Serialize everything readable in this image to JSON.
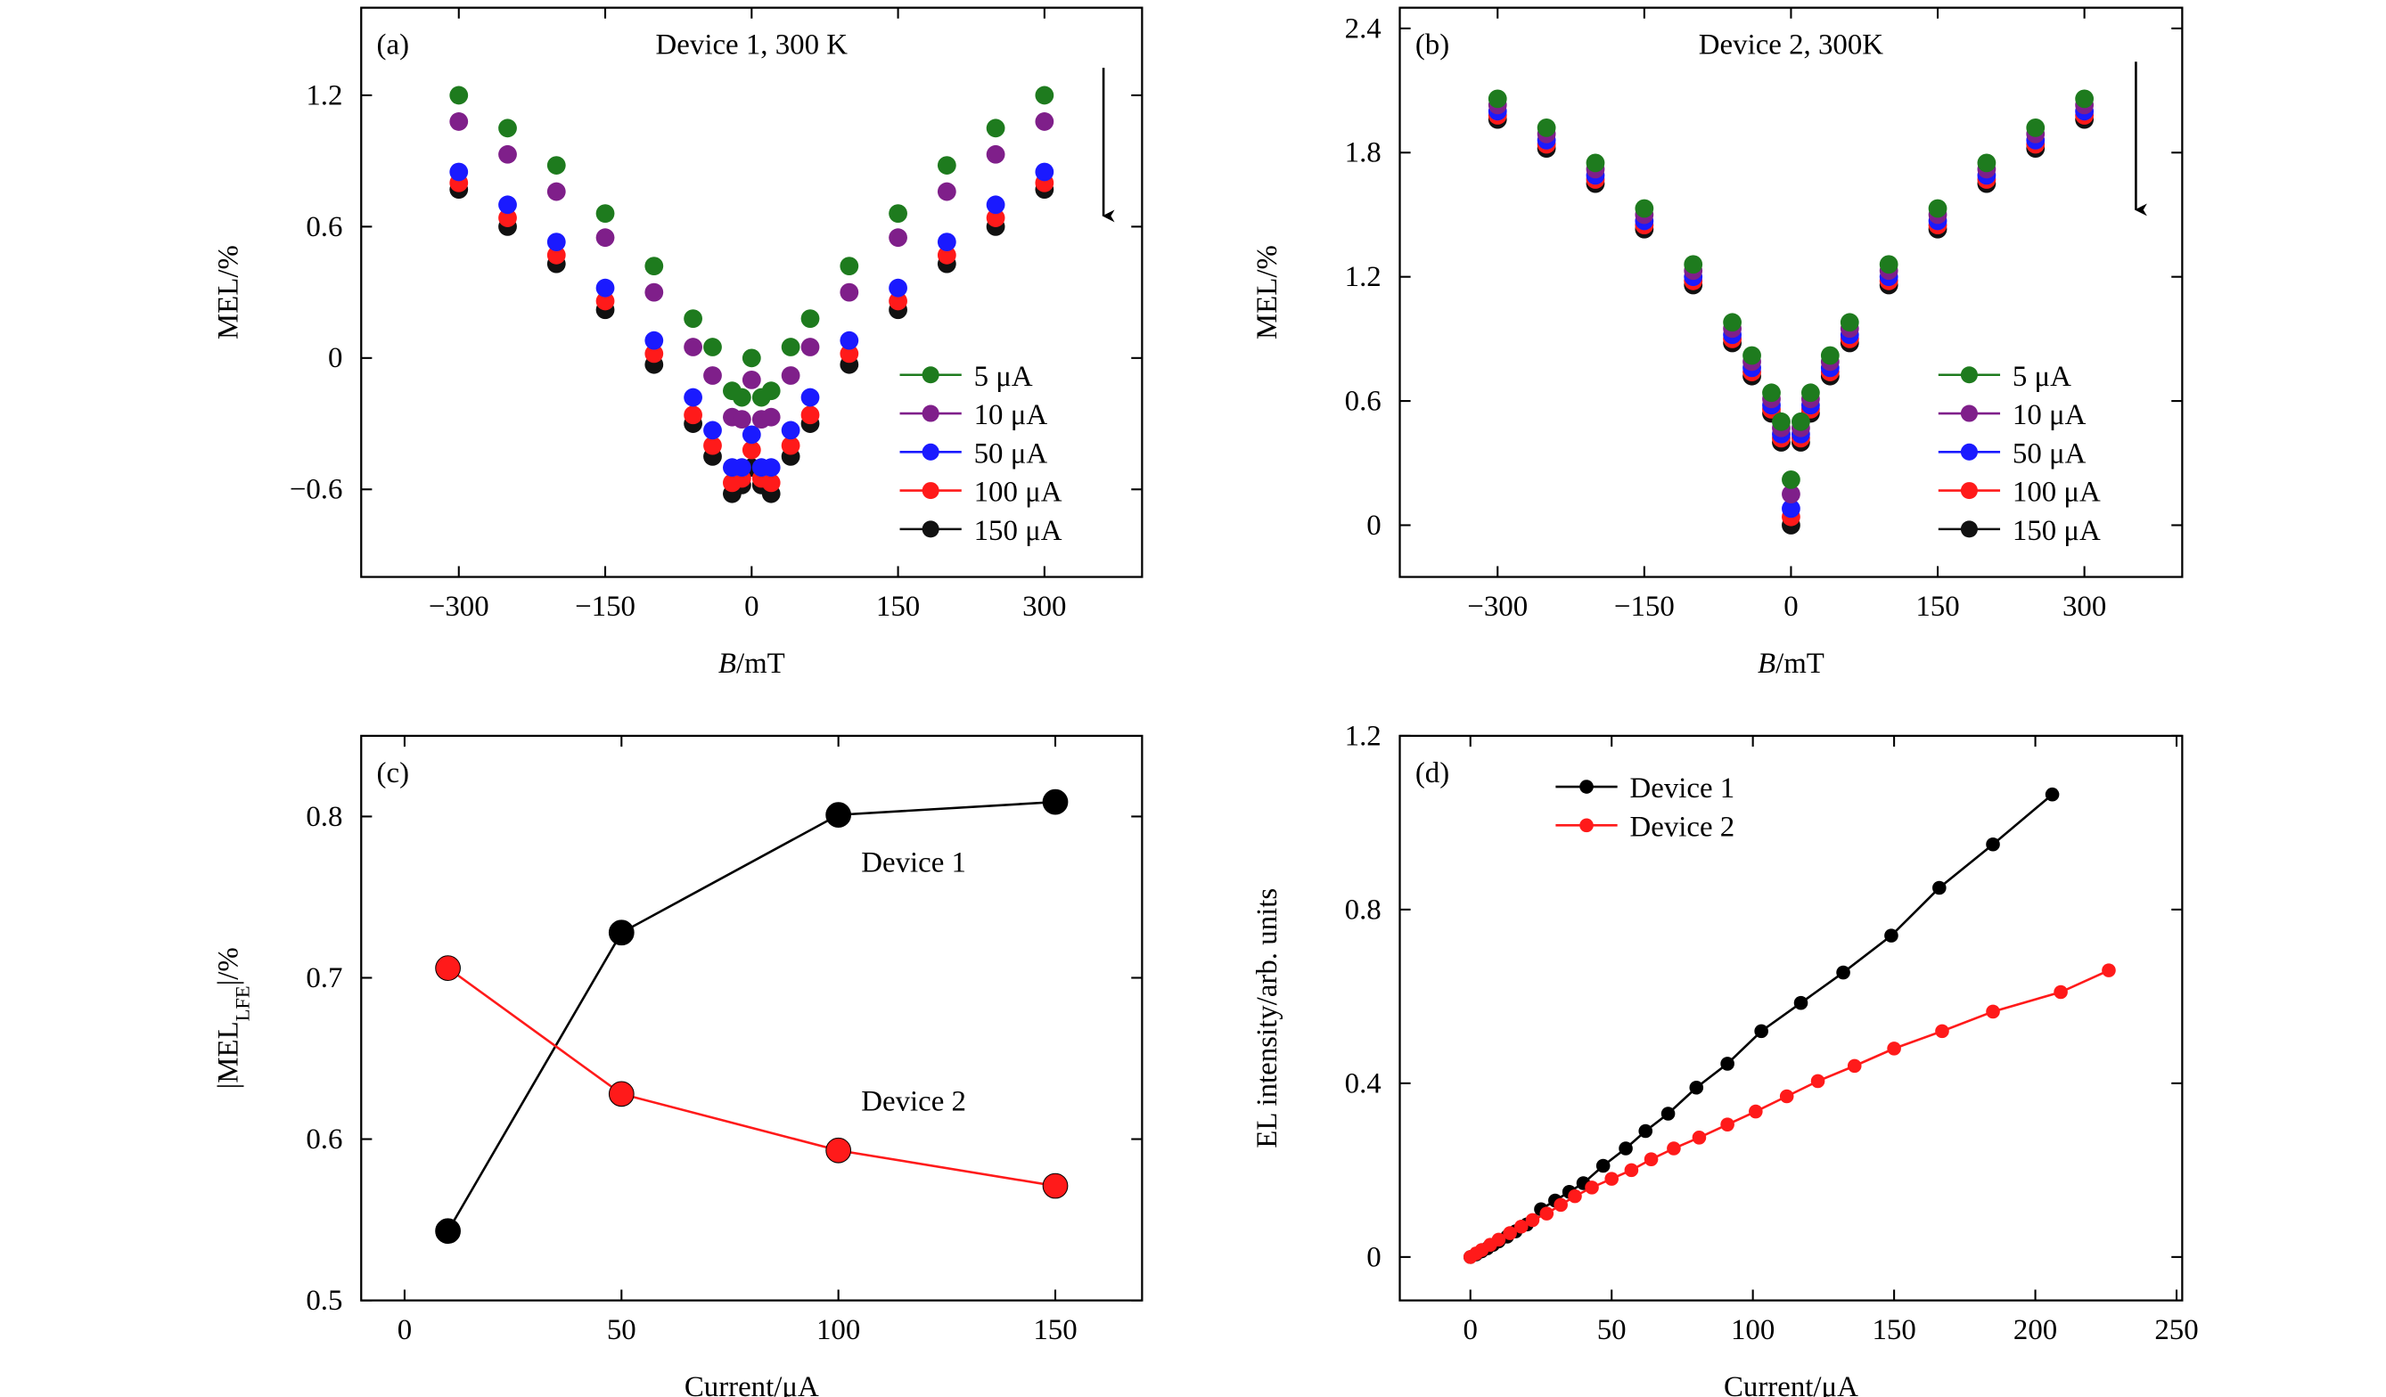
{
  "chart_data": [
    {
      "type": "scatter",
      "panel_label": "(a)",
      "title": "Device 1, 300 K",
      "xlabel": [
        {
          "text": "B",
          "style": "italic"
        },
        {
          "text": "/mT"
        }
      ],
      "ylabel": [
        {
          "text": "MEL/%"
        }
      ],
      "xlim": [
        -400,
        400
      ],
      "ylim": [
        -1,
        1.6
      ],
      "xticks": [
        {
          "value": -300,
          "label": "−300"
        },
        {
          "value": -150,
          "label": "−150"
        },
        0,
        150,
        300
      ],
      "yticks": [
        {
          "value": -0.6,
          "label": "−0.6"
        },
        0,
        0.6,
        1.2
      ],
      "x": [
        -300,
        -250,
        -200,
        -150,
        -100,
        -60,
        -40,
        -20,
        -10,
        0,
        10,
        20,
        40,
        60,
        100,
        150,
        200,
        250,
        300
      ],
      "series": [
        {
          "name": "5 μA",
          "color": "#1e7b1e",
          "values": [
            1.2,
            1.05,
            0.88,
            0.66,
            0.42,
            0.18,
            0.05,
            -0.15,
            -0.18,
            0.0,
            -0.18,
            -0.15,
            0.05,
            0.18,
            0.42,
            0.66,
            0.88,
            1.05,
            1.2
          ]
        },
        {
          "name": "10 μA",
          "color": "#7f1f8a",
          "values": [
            1.08,
            0.93,
            0.76,
            0.55,
            0.3,
            0.05,
            -0.08,
            -0.27,
            -0.28,
            -0.1,
            -0.28,
            -0.27,
            -0.08,
            0.05,
            0.3,
            0.55,
            0.76,
            0.93,
            1.08
          ]
        },
        {
          "name": "50 μA",
          "color": "#1a1aff",
          "values": [
            0.85,
            0.7,
            0.53,
            0.32,
            0.08,
            -0.18,
            -0.33,
            -0.5,
            -0.5,
            -0.35,
            -0.5,
            -0.5,
            -0.33,
            -0.18,
            0.08,
            0.32,
            0.53,
            0.7,
            0.85
          ]
        },
        {
          "name": "100 μA",
          "color": "#ff1a1a",
          "values": [
            0.8,
            0.64,
            0.47,
            0.26,
            0.02,
            -0.26,
            -0.4,
            -0.57,
            -0.55,
            -0.42,
            -0.55,
            -0.57,
            -0.4,
            -0.26,
            0.02,
            0.26,
            0.47,
            0.64,
            0.8
          ]
        },
        {
          "name": "150 μA",
          "color": "#111111",
          "values": [
            0.77,
            0.6,
            0.43,
            0.22,
            -0.03,
            -0.3,
            -0.45,
            -0.62,
            -0.58,
            -0.5,
            -0.58,
            -0.62,
            -0.45,
            -0.3,
            -0.03,
            0.22,
            0.43,
            0.6,
            0.77
          ]
        }
      ]
    },
    {
      "type": "scatter",
      "panel_label": "(b)",
      "title": "Device 2, 300K",
      "xlabel": [
        {
          "text": "B",
          "style": "italic"
        },
        {
          "text": "/mT"
        }
      ],
      "ylabel": [
        {
          "text": "MEL/%"
        }
      ],
      "xlim": [
        -400,
        400
      ],
      "ylim": [
        -0.25,
        2.5
      ],
      "xticks": [
        {
          "value": -300,
          "label": "−300"
        },
        {
          "value": -150,
          "label": "−150"
        },
        0,
        150,
        300
      ],
      "yticks": [
        0,
        0.6,
        1.2,
        1.8,
        2.4
      ],
      "x": [
        -300,
        -250,
        -200,
        -150,
        -100,
        -60,
        -40,
        -20,
        -10,
        0,
        10,
        20,
        40,
        60,
        100,
        150,
        200,
        250,
        300
      ],
      "series": [
        {
          "name": "5 μA",
          "color": "#1e7b1e",
          "values": [
            2.06,
            1.92,
            1.75,
            1.53,
            1.26,
            0.98,
            0.82,
            0.64,
            0.5,
            0.22,
            0.5,
            0.64,
            0.82,
            0.98,
            1.26,
            1.53,
            1.75,
            1.92,
            2.06
          ]
        },
        {
          "name": "10 μA",
          "color": "#7f1f8a",
          "values": [
            2.03,
            1.89,
            1.72,
            1.5,
            1.23,
            0.95,
            0.79,
            0.61,
            0.47,
            0.15,
            0.47,
            0.61,
            0.79,
            0.95,
            1.23,
            1.5,
            1.72,
            1.89,
            2.03
          ]
        },
        {
          "name": "50 μA",
          "color": "#1a1aff",
          "values": [
            2.0,
            1.86,
            1.69,
            1.47,
            1.2,
            0.92,
            0.76,
            0.58,
            0.44,
            0.08,
            0.44,
            0.58,
            0.76,
            0.92,
            1.2,
            1.47,
            1.69,
            1.86,
            2.0
          ]
        },
        {
          "name": "100 μA",
          "color": "#ff1a1a",
          "values": [
            1.98,
            1.84,
            1.67,
            1.45,
            1.18,
            0.9,
            0.74,
            0.56,
            0.42,
            0.04,
            0.42,
            0.56,
            0.74,
            0.9,
            1.18,
            1.45,
            1.67,
            1.84,
            1.98
          ]
        },
        {
          "name": "150 μA",
          "color": "#111111",
          "values": [
            1.96,
            1.82,
            1.65,
            1.43,
            1.16,
            0.88,
            0.72,
            0.54,
            0.4,
            0.0,
            0.4,
            0.54,
            0.72,
            0.88,
            1.16,
            1.43,
            1.65,
            1.82,
            1.96
          ]
        }
      ]
    },
    {
      "type": "line",
      "panel_label": "(c)",
      "xlabel": [
        {
          "text": "Current/μA"
        }
      ],
      "ylabel": [
        {
          "text": "|MEL"
        },
        {
          "text": "LFE",
          "style": "sub"
        },
        {
          "text": "|/%"
        }
      ],
      "xlim": [
        -10,
        170
      ],
      "ylim": [
        0.5,
        0.85
      ],
      "xticks": [
        0,
        50,
        100,
        150
      ],
      "yticks": [
        0.5,
        0.6,
        0.7,
        0.8
      ],
      "x": [
        10,
        50,
        100,
        150
      ],
      "annotations": [
        "Device 1",
        "Device 2"
      ],
      "series": [
        {
          "color": "#000000",
          "values": [
            0.543,
            0.728,
            0.801,
            0.809
          ]
        },
        {
          "color": "#ff1a1a",
          "values": [
            0.706,
            0.628,
            0.593,
            0.571
          ]
        }
      ]
    },
    {
      "type": "line",
      "panel_label": "(d)",
      "xlabel": [
        {
          "text": "Current/μA"
        }
      ],
      "ylabel": [
        {
          "text": "EL intensity/arb. units"
        }
      ],
      "xlim": [
        -25,
        252
      ],
      "ylim": [
        -0.1,
        1.2
      ],
      "xticks": [
        0,
        50,
        100,
        150,
        200,
        250
      ],
      "yticks": [
        0,
        0.4,
        0.8,
        1.2
      ],
      "series": [
        {
          "name": "Device 1",
          "color": "#000000",
          "x": [
            0,
            2,
            4,
            6,
            8,
            10,
            13,
            16,
            20,
            25,
            30,
            35,
            40,
            47,
            55,
            62,
            70,
            80,
            91,
            103,
            117,
            132,
            149,
            166,
            185,
            206
          ],
          "values": [
            0,
            0.006,
            0.013,
            0.02,
            0.028,
            0.036,
            0.047,
            0.059,
            0.075,
            0.11,
            0.13,
            0.15,
            0.17,
            0.21,
            0.25,
            0.29,
            0.33,
            0.39,
            0.445,
            0.52,
            0.585,
            0.655,
            0.74,
            0.85,
            0.95,
            1.065
          ]
        },
        {
          "name": "Device 2",
          "color": "#ff1a1a",
          "x": [
            0,
            2,
            4,
            7,
            10,
            14,
            18,
            22,
            27,
            32,
            37,
            43,
            50,
            57,
            64,
            72,
            81,
            91,
            101,
            112,
            123,
            136,
            150,
            167,
            185,
            209,
            226
          ],
          "values": [
            0,
            0.008,
            0.016,
            0.028,
            0.04,
            0.055,
            0.07,
            0.085,
            0.1,
            0.12,
            0.14,
            0.16,
            0.18,
            0.2,
            0.225,
            0.25,
            0.275,
            0.305,
            0.335,
            0.37,
            0.405,
            0.44,
            0.48,
            0.52,
            0.565,
            0.61,
            0.66
          ]
        }
      ]
    }
  ]
}
